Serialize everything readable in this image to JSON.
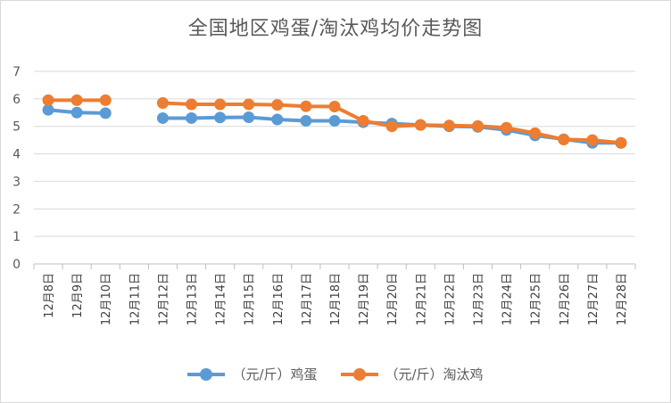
{
  "chart_data": {
    "type": "line",
    "title": "全国地区鸡蛋/淘汰鸡均价走势图",
    "categories": [
      "12月8日",
      "12月9日",
      "12月10日",
      "12月11日",
      "12月12日",
      "12月13日",
      "12月14日",
      "12月15日",
      "12月16日",
      "12月17日",
      "12月18日",
      "12月19日",
      "12月20日",
      "12月21日",
      "12月22日",
      "12月23日",
      "12月24日",
      "12月25日",
      "12月26日",
      "12月27日",
      "12月28日"
    ],
    "ylim": [
      0,
      7
    ],
    "yticks": [
      0,
      1,
      2,
      3,
      4,
      5,
      6,
      7
    ],
    "grid": true,
    "legend_position": "bottom",
    "series": [
      {
        "name": "（元/斤）鸡蛋",
        "color": "#5b9bd5",
        "values": [
          5.6,
          5.5,
          5.48,
          null,
          5.3,
          5.3,
          5.32,
          5.33,
          5.25,
          5.2,
          5.2,
          5.15,
          5.1,
          5.05,
          5.0,
          4.98,
          4.87,
          4.67,
          4.53,
          4.4,
          4.4
        ]
      },
      {
        "name": "（元/斤）淘汰鸡",
        "color": "#ed7d31",
        "values": [
          5.95,
          5.95,
          5.95,
          null,
          5.85,
          5.8,
          5.8,
          5.8,
          5.78,
          5.73,
          5.72,
          5.2,
          5.0,
          5.05,
          5.03,
          5.01,
          4.95,
          4.75,
          4.52,
          4.5,
          4.4
        ]
      }
    ]
  }
}
